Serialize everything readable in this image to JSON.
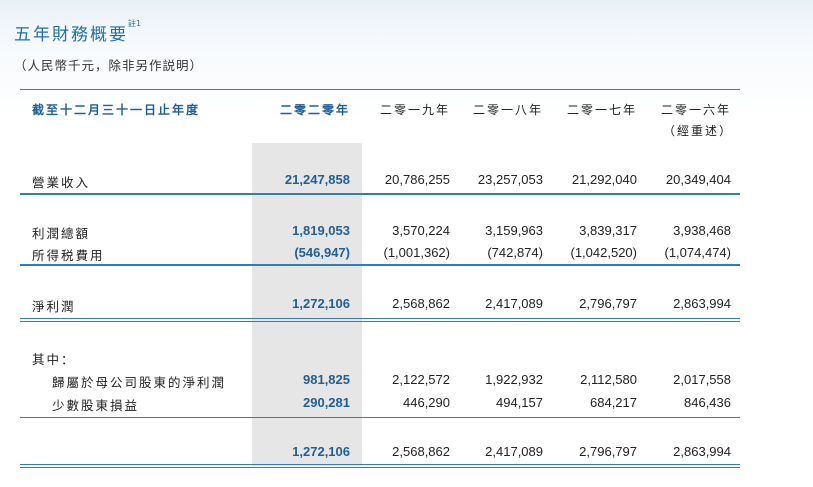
{
  "title": "五年財務概要",
  "title_note": "註1",
  "unit_note": "（人民幣千元，除非另作説明）",
  "header": {
    "label": "截至十二月三十一日止年度",
    "years": [
      "二零二零年",
      "二零一九年",
      "二零一八年",
      "二零一七年",
      "二零一六年"
    ],
    "restated": "（經重述）"
  },
  "rows": {
    "revenue": {
      "label": "營業收入",
      "values": [
        "21,247,858",
        "20,786,255",
        "23,257,053",
        "21,292,040",
        "20,349,404"
      ]
    },
    "total_profit": {
      "label": "利潤總額",
      "values": [
        "1,819,053",
        "3,570,224",
        "3,159,963",
        "3,839,317",
        "3,938,468"
      ]
    },
    "income_tax": {
      "label": "所得税費用",
      "values": [
        "(546,947)",
        "(1,001,362)",
        "(742,874)",
        "(1,042,520)",
        "(1,074,474)"
      ]
    },
    "net_profit": {
      "label": "淨利潤",
      "values": [
        "1,272,106",
        "2,568,862",
        "2,417,089",
        "2,796,797",
        "2,863,994"
      ]
    },
    "of_which": {
      "label": "其中："
    },
    "parent": {
      "label": "歸屬於母公司股東的淨利潤",
      "values": [
        "981,825",
        "2,122,572",
        "1,922,932",
        "2,112,580",
        "2,017,558"
      ]
    },
    "minority": {
      "label": "少數股東損益",
      "values": [
        "290,281",
        "446,290",
        "494,157",
        "684,217",
        "846,436"
      ]
    },
    "total": {
      "values": [
        "1,272,106",
        "2,568,862",
        "2,417,089",
        "2,796,797",
        "2,863,994"
      ]
    }
  }
}
